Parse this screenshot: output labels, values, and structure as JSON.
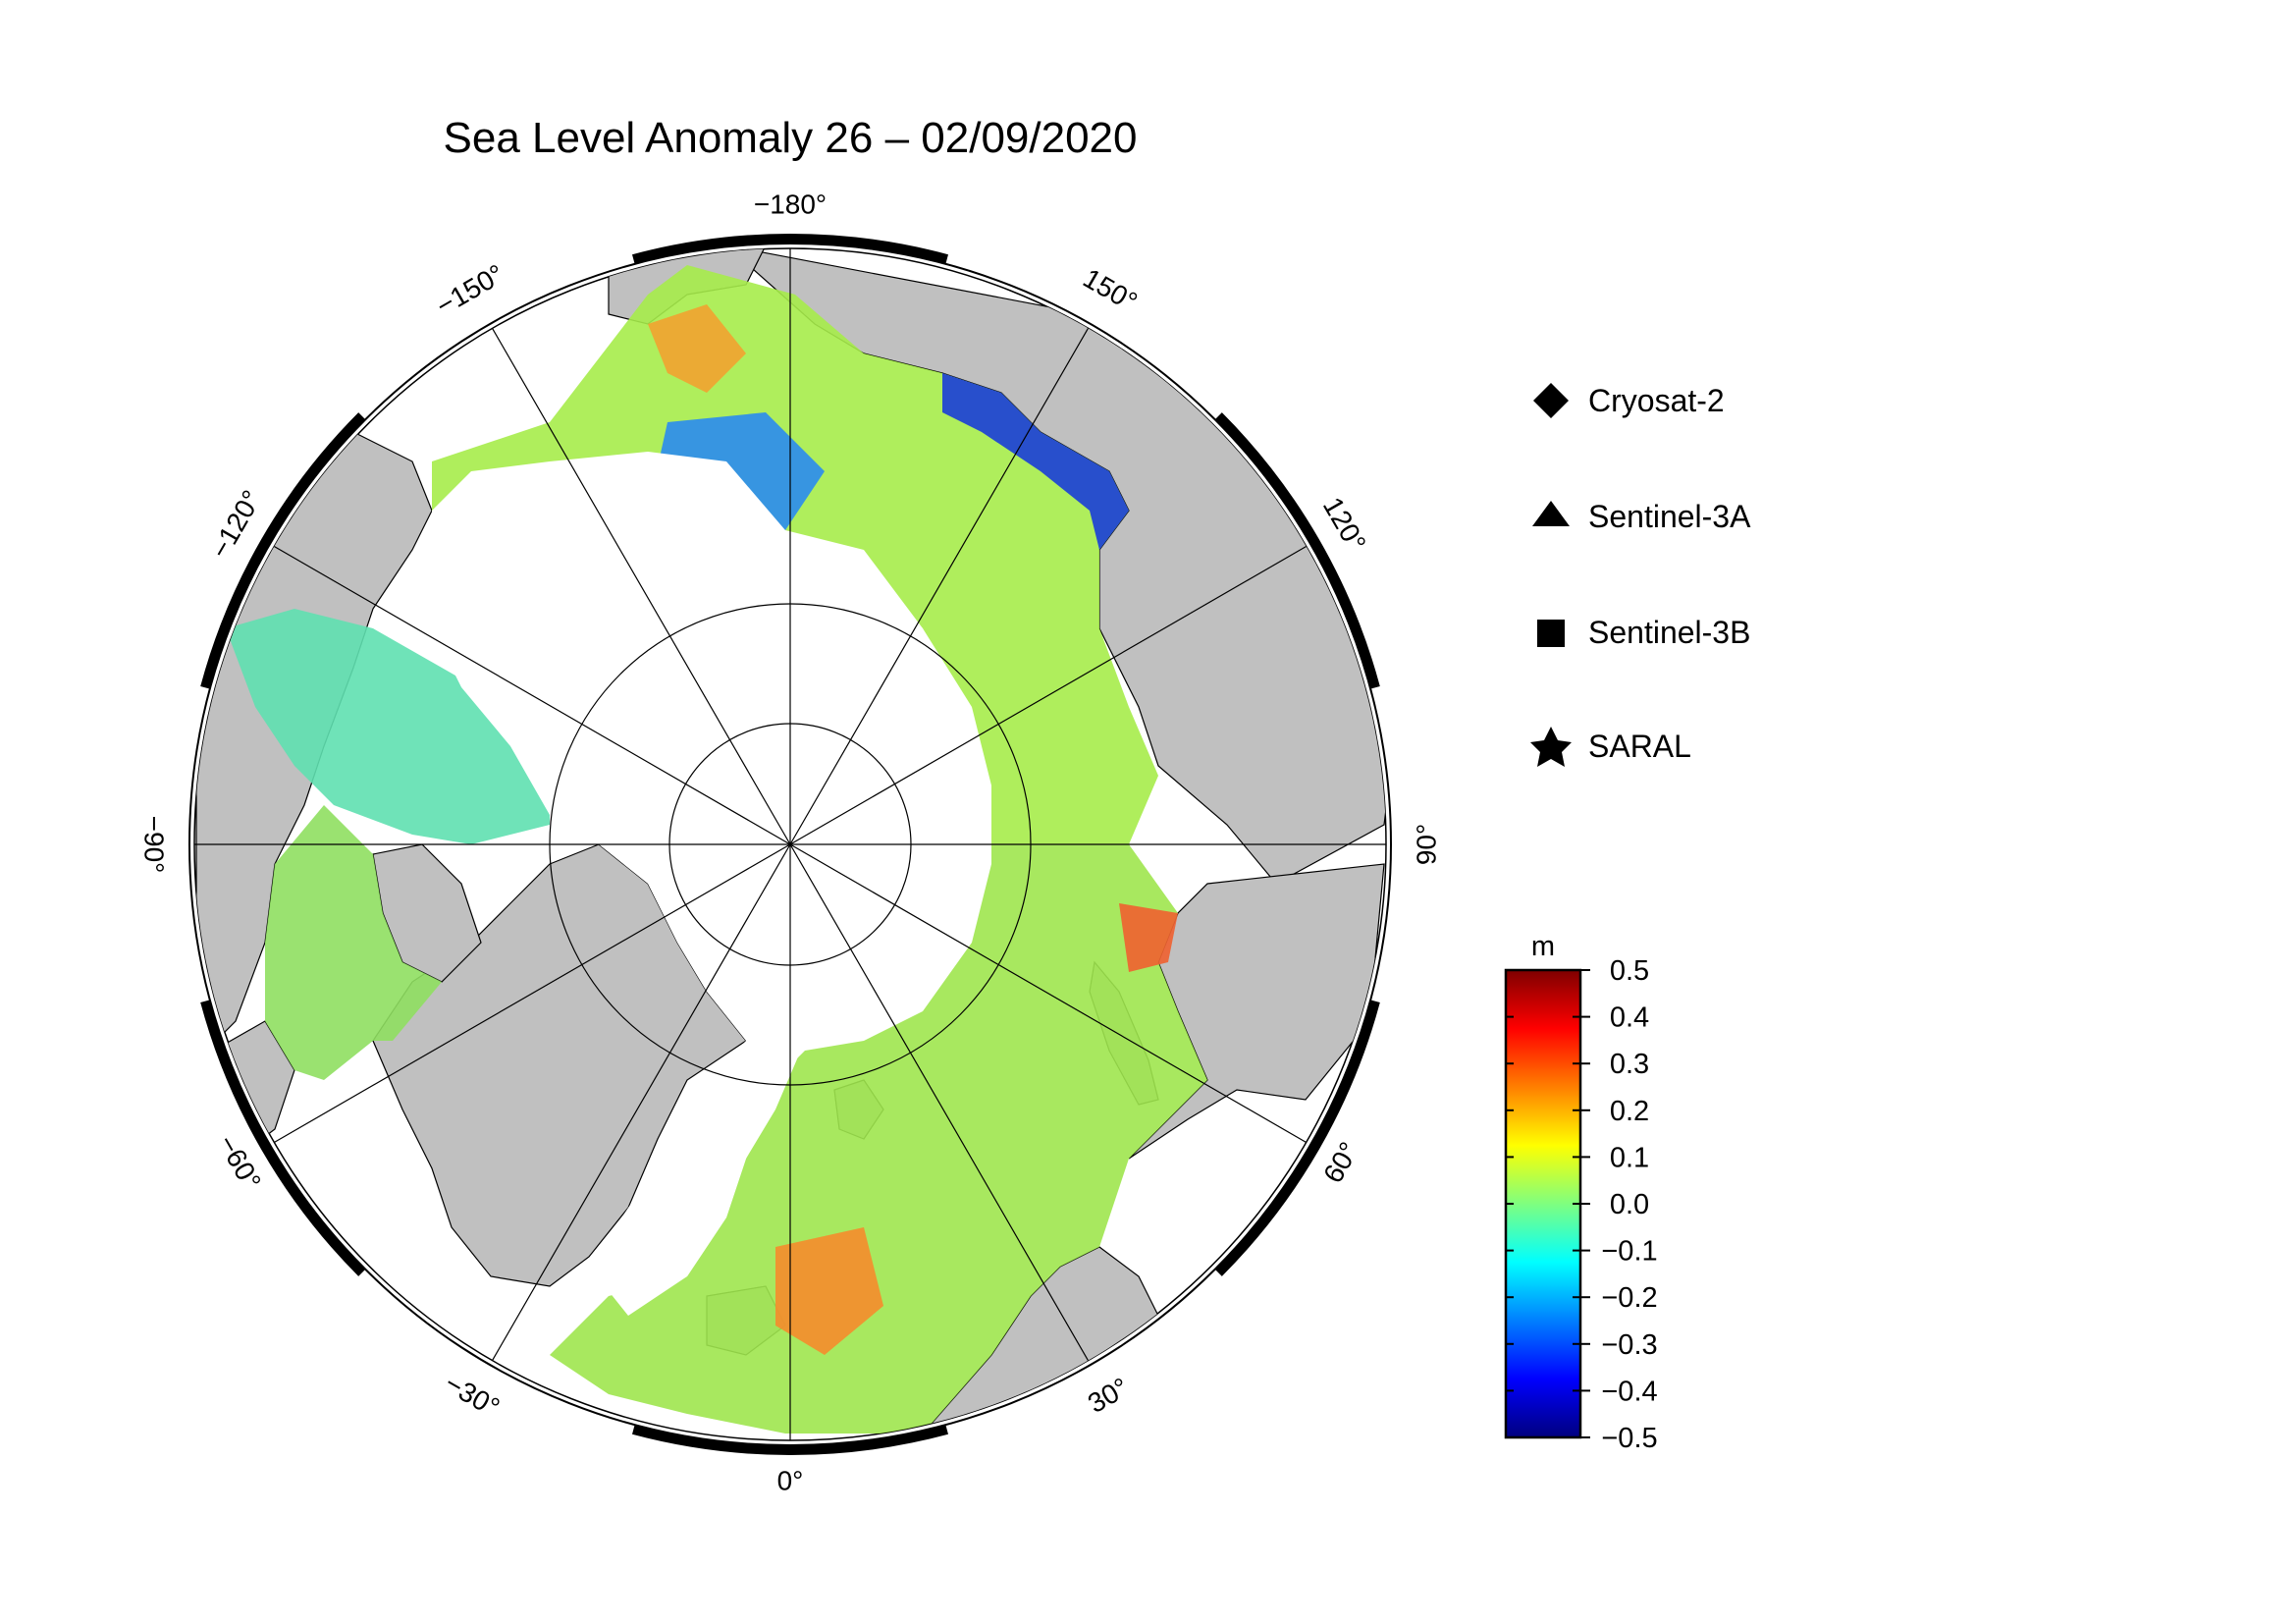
{
  "title": "Sea Level Anomaly 26 – 02/09/2020",
  "map": {
    "projection": "north-polar-stereographic",
    "longitude_labels": [
      {
        "text": "−180°",
        "lon": 180
      },
      {
        "text": "150°",
        "lon": 150
      },
      {
        "text": "120°",
        "lon": 120
      },
      {
        "text": "90°",
        "lon": 90
      },
      {
        "text": "60°",
        "lon": 60
      },
      {
        "text": "30°",
        "lon": 30
      },
      {
        "text": "0°",
        "lon": 0
      },
      {
        "text": "−30°",
        "lon": -30
      },
      {
        "text": "−60°",
        "lon": -60
      },
      {
        "text": "−90°",
        "lon": -90
      },
      {
        "text": "−120°",
        "lon": -120
      },
      {
        "text": "−150°",
        "lon": -150
      }
    ],
    "colors": {
      "land": "#c0c0c0",
      "ocean_no_data": "#ffffff",
      "frame": "#000000"
    }
  },
  "legend": {
    "items": [
      {
        "label": "Cryosat-2",
        "marker": "diamond"
      },
      {
        "label": "Sentinel-3A",
        "marker": "triangle"
      },
      {
        "label": "Sentinel-3B",
        "marker": "square"
      },
      {
        "label": "SARAL",
        "marker": "star"
      }
    ]
  },
  "colorbar": {
    "unit": "m",
    "min": -0.5,
    "max": 0.5,
    "ticks": [
      "0.5",
      "0.4",
      "0.3",
      "0.2",
      "0.1",
      "0.0",
      "−0.1",
      "−0.2",
      "−0.3",
      "−0.4",
      "−0.5"
    ],
    "colormap": "jet",
    "colors": [
      "#00007f",
      "#0000ff",
      "#007fff",
      "#00ffff",
      "#7fff7f",
      "#ffff00",
      "#ff7f00",
      "#ff0000",
      "#7f0000"
    ]
  }
}
